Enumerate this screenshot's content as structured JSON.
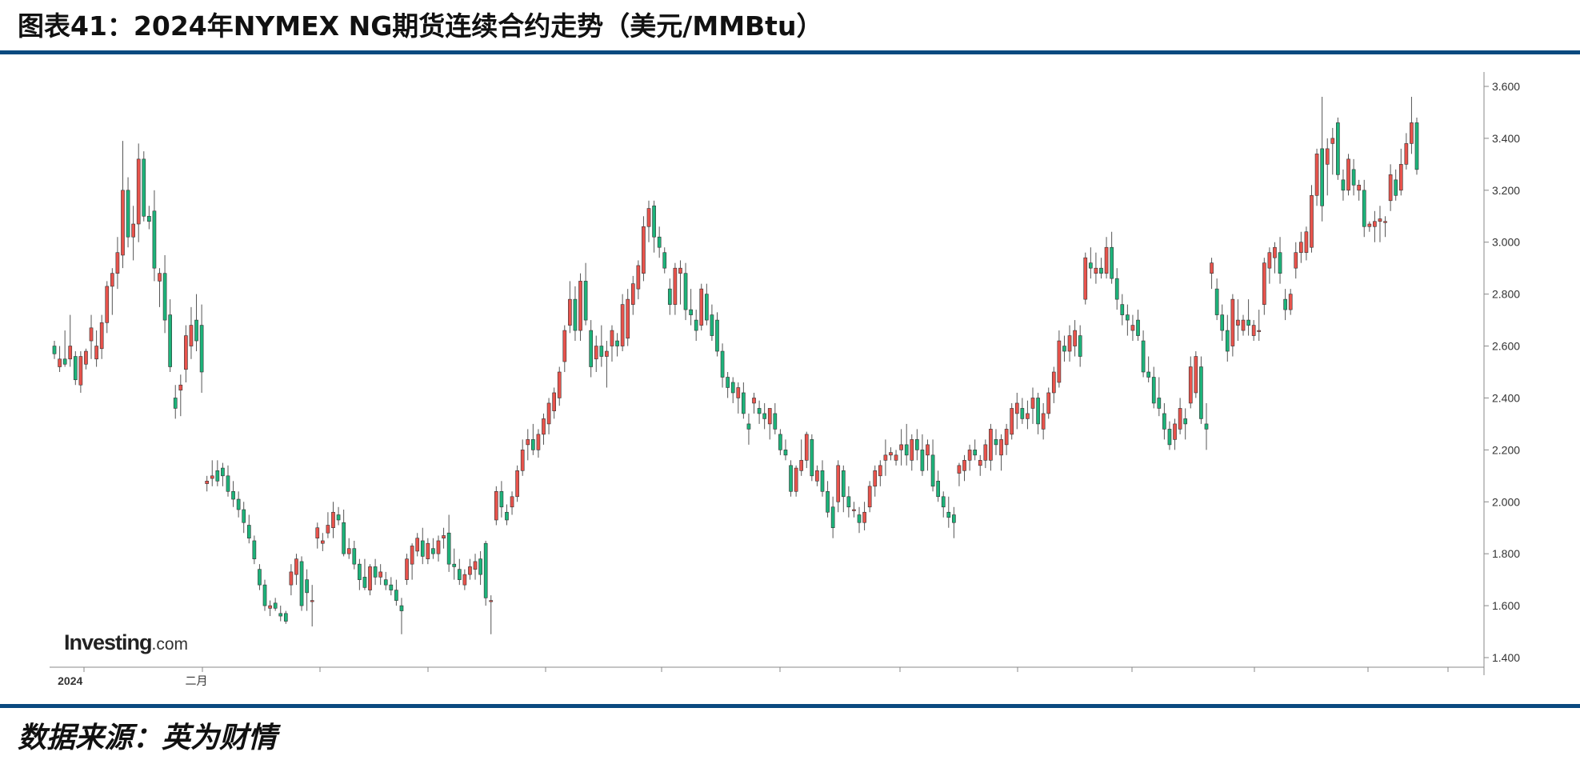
{
  "header": {
    "title": "图表41：2024年NYMEX NG期货连续合约走势（美元/MMBtu）"
  },
  "footer": {
    "source": "数据来源：英为财情"
  },
  "watermark": {
    "brand": "Investing",
    "suffix": ".com"
  },
  "colors": {
    "up": "#e8534c",
    "down": "#1db37a",
    "rule": "#0a4a7f",
    "wick": "#555555"
  },
  "chart_data": {
    "type": "candlestick",
    "title": "",
    "xlabel": "",
    "ylabel": "",
    "y_axis_position": "right",
    "ylim": [
      1.35,
      3.65
    ],
    "yticks": [
      "3.600",
      "3.400",
      "3.200",
      "3.000",
      "2.800",
      "2.600",
      "2.400",
      "2.200",
      "2.000",
      "1.800",
      "1.600",
      "1.400"
    ],
    "xtick_labels": [
      {
        "label": "2024",
        "index": 3
      },
      {
        "label": "二月",
        "index": 27
      }
    ],
    "grid": false,
    "candles": [
      [
        2.6,
        2.62,
        2.55,
        2.57
      ],
      [
        2.52,
        2.6,
        2.5,
        2.55
      ],
      [
        2.55,
        2.66,
        2.52,
        2.53
      ],
      [
        2.55,
        2.72,
        2.52,
        2.6
      ],
      [
        2.56,
        2.58,
        2.45,
        2.47
      ],
      [
        2.45,
        2.58,
        2.42,
        2.56
      ],
      [
        2.53,
        2.59,
        2.51,
        2.58
      ],
      [
        2.62,
        2.72,
        2.55,
        2.67
      ],
      [
        2.55,
        2.66,
        2.52,
        2.6
      ],
      [
        2.59,
        2.72,
        2.55,
        2.69
      ],
      [
        2.69,
        2.85,
        2.65,
        2.83
      ],
      [
        2.83,
        2.9,
        2.72,
        2.88
      ],
      [
        2.88,
        3.02,
        2.82,
        2.96
      ],
      [
        2.95,
        3.39,
        2.9,
        3.2
      ],
      [
        3.2,
        3.25,
        2.98,
        3.02
      ],
      [
        3.02,
        3.14,
        2.93,
        3.07
      ],
      [
        3.07,
        3.38,
        3.0,
        3.32
      ],
      [
        3.32,
        3.35,
        3.08,
        3.1
      ],
      [
        3.1,
        3.14,
        3.05,
        3.08
      ],
      [
        3.12,
        3.2,
        2.85,
        2.9
      ],
      [
        2.85,
        2.9,
        2.75,
        2.88
      ],
      [
        2.88,
        2.95,
        2.65,
        2.7
      ],
      [
        2.72,
        2.78,
        2.5,
        2.52
      ],
      [
        2.4,
        2.45,
        2.32,
        2.36
      ],
      [
        2.43,
        2.49,
        2.33,
        2.45
      ],
      [
        2.51,
        2.68,
        2.46,
        2.64
      ],
      [
        2.6,
        2.75,
        2.55,
        2.68
      ],
      [
        2.7,
        2.8,
        2.58,
        2.62
      ],
      [
        2.68,
        2.76,
        2.42,
        2.5
      ],
      [
        2.07,
        2.1,
        2.04,
        2.08
      ],
      [
        2.09,
        2.16,
        2.06,
        2.1
      ],
      [
        2.12,
        2.16,
        2.06,
        2.08
      ],
      [
        2.13,
        2.15,
        2.06,
        2.1
      ],
      [
        2.1,
        2.14,
        2.02,
        2.04
      ],
      [
        2.04,
        2.08,
        1.98,
        2.01
      ],
      [
        2.01,
        2.04,
        1.94,
        1.97
      ],
      [
        1.97,
        2.0,
        1.88,
        1.92
      ],
      [
        1.91,
        1.95,
        1.84,
        1.86
      ],
      [
        1.85,
        1.87,
        1.76,
        1.78
      ],
      [
        1.74,
        1.76,
        1.66,
        1.68
      ],
      [
        1.68,
        1.7,
        1.58,
        1.6
      ],
      [
        1.59,
        1.62,
        1.56,
        1.6
      ],
      [
        1.61,
        1.63,
        1.58,
        1.59
      ],
      [
        1.57,
        1.6,
        1.54,
        1.56
      ],
      [
        1.57,
        1.58,
        1.53,
        1.54
      ],
      [
        1.68,
        1.76,
        1.64,
        1.73
      ],
      [
        1.72,
        1.8,
        1.68,
        1.78
      ],
      [
        1.77,
        1.79,
        1.58,
        1.6
      ],
      [
        1.7,
        1.74,
        1.58,
        1.65
      ],
      [
        1.62,
        1.68,
        1.52,
        1.62
      ],
      [
        1.86,
        1.92,
        1.82,
        1.9
      ],
      [
        1.84,
        1.88,
        1.81,
        1.85
      ],
      [
        1.88,
        1.96,
        1.86,
        1.91
      ],
      [
        1.9,
        2.0,
        1.86,
        1.96
      ],
      [
        1.95,
        1.98,
        1.91,
        1.93
      ],
      [
        1.92,
        1.97,
        1.79,
        1.8
      ],
      [
        1.8,
        1.86,
        1.78,
        1.82
      ],
      [
        1.82,
        1.85,
        1.74,
        1.76
      ],
      [
        1.76,
        1.78,
        1.66,
        1.7
      ],
      [
        1.71,
        1.78,
        1.66,
        1.67
      ],
      [
        1.66,
        1.76,
        1.64,
        1.75
      ],
      [
        1.75,
        1.78,
        1.68,
        1.71
      ],
      [
        1.71,
        1.76,
        1.68,
        1.73
      ],
      [
        1.7,
        1.73,
        1.66,
        1.68
      ],
      [
        1.68,
        1.71,
        1.64,
        1.66
      ],
      [
        1.66,
        1.7,
        1.6,
        1.62
      ],
      [
        1.6,
        1.63,
        1.49,
        1.58
      ],
      [
        1.7,
        1.8,
        1.68,
        1.78
      ],
      [
        1.76,
        1.84,
        1.7,
        1.83
      ],
      [
        1.81,
        1.88,
        1.79,
        1.86
      ],
      [
        1.85,
        1.9,
        1.76,
        1.79
      ],
      [
        1.78,
        1.86,
        1.76,
        1.84
      ],
      [
        1.82,
        1.86,
        1.78,
        1.8
      ],
      [
        1.8,
        1.87,
        1.77,
        1.85
      ],
      [
        1.86,
        1.9,
        1.82,
        1.87
      ],
      [
        1.88,
        1.95,
        1.73,
        1.76
      ],
      [
        1.76,
        1.82,
        1.7,
        1.75
      ],
      [
        1.74,
        1.78,
        1.68,
        1.7
      ],
      [
        1.68,
        1.74,
        1.66,
        1.72
      ],
      [
        1.72,
        1.78,
        1.7,
        1.75
      ],
      [
        1.74,
        1.8,
        1.7,
        1.77
      ],
      [
        1.78,
        1.81,
        1.68,
        1.72
      ],
      [
        1.84,
        1.85,
        1.6,
        1.63
      ],
      [
        1.62,
        1.64,
        1.49,
        1.62
      ],
      [
        1.93,
        2.06,
        1.91,
        2.04
      ],
      [
        2.04,
        2.08,
        1.94,
        1.98
      ],
      [
        1.96,
        1.99,
        1.91,
        1.93
      ],
      [
        1.98,
        2.04,
        1.95,
        2.02
      ],
      [
        2.02,
        2.14,
        2.0,
        2.12
      ],
      [
        2.12,
        2.24,
        2.1,
        2.2
      ],
      [
        2.22,
        2.28,
        2.16,
        2.24
      ],
      [
        2.24,
        2.3,
        2.18,
        2.2
      ],
      [
        2.2,
        2.28,
        2.17,
        2.26
      ],
      [
        2.26,
        2.34,
        2.22,
        2.32
      ],
      [
        2.3,
        2.4,
        2.26,
        2.38
      ],
      [
        2.35,
        2.44,
        2.32,
        2.42
      ],
      [
        2.4,
        2.52,
        2.37,
        2.5
      ],
      [
        2.54,
        2.68,
        2.5,
        2.66
      ],
      [
        2.68,
        2.85,
        2.65,
        2.78
      ],
      [
        2.78,
        2.83,
        2.62,
        2.66
      ],
      [
        2.66,
        2.88,
        2.62,
        2.85
      ],
      [
        2.85,
        2.92,
        2.68,
        2.7
      ],
      [
        2.66,
        2.7,
        2.48,
        2.52
      ],
      [
        2.55,
        2.64,
        2.5,
        2.6
      ],
      [
        2.6,
        2.68,
        2.52,
        2.56
      ],
      [
        2.56,
        2.62,
        2.44,
        2.58
      ],
      [
        2.6,
        2.68,
        2.54,
        2.66
      ],
      [
        2.62,
        2.65,
        2.56,
        2.6
      ],
      [
        2.6,
        2.8,
        2.58,
        2.76
      ],
      [
        2.63,
        2.82,
        2.6,
        2.78
      ],
      [
        2.76,
        2.87,
        2.72,
        2.84
      ],
      [
        2.82,
        2.93,
        2.78,
        2.91
      ],
      [
        2.88,
        3.1,
        2.85,
        3.06
      ],
      [
        3.06,
        3.16,
        3.0,
        3.13
      ],
      [
        3.14,
        3.16,
        2.96,
        3.02
      ],
      [
        3.02,
        3.06,
        2.94,
        2.98
      ],
      [
        2.96,
        2.98,
        2.88,
        2.9
      ],
      [
        2.82,
        2.86,
        2.72,
        2.76
      ],
      [
        2.76,
        2.92,
        2.72,
        2.9
      ],
      [
        2.88,
        2.93,
        2.76,
        2.9
      ],
      [
        2.88,
        2.92,
        2.7,
        2.74
      ],
      [
        2.74,
        2.82,
        2.68,
        2.72
      ],
      [
        2.7,
        2.74,
        2.62,
        2.66
      ],
      [
        2.68,
        2.84,
        2.66,
        2.82
      ],
      [
        2.8,
        2.84,
        2.68,
        2.7
      ],
      [
        2.72,
        2.76,
        2.62,
        2.64
      ],
      [
        2.7,
        2.73,
        2.56,
        2.58
      ],
      [
        2.58,
        2.61,
        2.44,
        2.48
      ],
      [
        2.48,
        2.5,
        2.4,
        2.44
      ],
      [
        2.46,
        2.48,
        2.38,
        2.42
      ],
      [
        2.4,
        2.46,
        2.34,
        2.44
      ],
      [
        2.42,
        2.46,
        2.32,
        2.34
      ],
      [
        2.3,
        2.34,
        2.22,
        2.28
      ],
      [
        2.38,
        2.42,
        2.34,
        2.4
      ],
      [
        2.36,
        2.39,
        2.3,
        2.34
      ],
      [
        2.34,
        2.38,
        2.28,
        2.32
      ],
      [
        2.3,
        2.36,
        2.24,
        2.36
      ],
      [
        2.34,
        2.38,
        2.26,
        2.28
      ],
      [
        2.26,
        2.28,
        2.18,
        2.2
      ],
      [
        2.2,
        2.24,
        2.16,
        2.18
      ],
      [
        2.14,
        2.16,
        2.02,
        2.04
      ],
      [
        2.04,
        2.14,
        2.02,
        2.13
      ],
      [
        2.12,
        2.24,
        2.1,
        2.16
      ],
      [
        2.16,
        2.27,
        2.13,
        2.26
      ],
      [
        2.24,
        2.26,
        2.08,
        2.1
      ],
      [
        2.08,
        2.14,
        2.06,
        2.12
      ],
      [
        2.12,
        2.16,
        2.02,
        2.04
      ],
      [
        2.04,
        2.08,
        1.94,
        1.96
      ],
      [
        1.98,
        2.02,
        1.86,
        1.9
      ],
      [
        2.0,
        2.16,
        1.96,
        2.14
      ],
      [
        2.12,
        2.14,
        1.96,
        2.02
      ],
      [
        2.02,
        2.06,
        1.94,
        1.98
      ],
      [
        1.97,
        2.0,
        1.94,
        1.97
      ],
      [
        1.95,
        1.98,
        1.88,
        1.92
      ],
      [
        1.92,
        2.0,
        1.89,
        1.96
      ],
      [
        1.98,
        2.08,
        1.96,
        2.06
      ],
      [
        2.06,
        2.14,
        2.02,
        2.12
      ],
      [
        2.1,
        2.16,
        2.06,
        2.14
      ],
      [
        2.16,
        2.24,
        2.1,
        2.18
      ],
      [
        2.18,
        2.21,
        2.16,
        2.19
      ],
      [
        2.16,
        2.2,
        2.14,
        2.18
      ],
      [
        2.2,
        2.28,
        2.14,
        2.22
      ],
      [
        2.22,
        2.3,
        2.14,
        2.18
      ],
      [
        2.16,
        2.26,
        2.12,
        2.24
      ],
      [
        2.24,
        2.28,
        2.16,
        2.2
      ],
      [
        2.2,
        2.26,
        2.1,
        2.12
      ],
      [
        2.18,
        2.24,
        2.12,
        2.22
      ],
      [
        2.18,
        2.24,
        2.04,
        2.06
      ],
      [
        2.08,
        2.12,
        2.0,
        2.02
      ],
      [
        2.02,
        2.04,
        1.94,
        1.98
      ],
      [
        1.96,
        2.02,
        1.9,
        1.94
      ],
      [
        1.95,
        1.98,
        1.86,
        1.92
      ],
      [
        2.11,
        2.15,
        2.06,
        2.14
      ],
      [
        2.12,
        2.18,
        2.08,
        2.16
      ],
      [
        2.16,
        2.22,
        2.12,
        2.2
      ],
      [
        2.2,
        2.24,
        2.16,
        2.18
      ],
      [
        2.14,
        2.18,
        2.1,
        2.16
      ],
      [
        2.16,
        2.24,
        2.13,
        2.22
      ],
      [
        2.16,
        2.3,
        2.12,
        2.28
      ],
      [
        2.24,
        2.28,
        2.18,
        2.22
      ],
      [
        2.18,
        2.26,
        2.12,
        2.24
      ],
      [
        2.22,
        2.3,
        2.18,
        2.28
      ],
      [
        2.26,
        2.38,
        2.24,
        2.36
      ],
      [
        2.34,
        2.42,
        2.28,
        2.38
      ],
      [
        2.36,
        2.4,
        2.3,
        2.32
      ],
      [
        2.32,
        2.39,
        2.28,
        2.34
      ],
      [
        2.36,
        2.44,
        2.3,
        2.4
      ],
      [
        2.4,
        2.42,
        2.26,
        2.3
      ],
      [
        2.28,
        2.38,
        2.24,
        2.34
      ],
      [
        2.34,
        2.44,
        2.32,
        2.42
      ],
      [
        2.42,
        2.52,
        2.38,
        2.5
      ],
      [
        2.46,
        2.66,
        2.44,
        2.62
      ],
      [
        2.6,
        2.64,
        2.54,
        2.58
      ],
      [
        2.58,
        2.68,
        2.54,
        2.64
      ],
      [
        2.6,
        2.7,
        2.56,
        2.66
      ],
      [
        2.64,
        2.68,
        2.52,
        2.56
      ],
      [
        2.78,
        2.96,
        2.76,
        2.94
      ],
      [
        2.92,
        2.98,
        2.86,
        2.9
      ],
      [
        2.88,
        2.96,
        2.84,
        2.9
      ],
      [
        2.9,
        2.94,
        2.86,
        2.88
      ],
      [
        2.88,
        3.02,
        2.86,
        2.98
      ],
      [
        2.98,
        3.04,
        2.84,
        2.86
      ],
      [
        2.86,
        2.9,
        2.74,
        2.78
      ],
      [
        2.76,
        2.8,
        2.68,
        2.72
      ],
      [
        2.72,
        2.76,
        2.64,
        2.7
      ],
      [
        2.66,
        2.72,
        2.62,
        2.68
      ],
      [
        2.7,
        2.74,
        2.62,
        2.64
      ],
      [
        2.62,
        2.66,
        2.48,
        2.5
      ],
      [
        2.5,
        2.56,
        2.46,
        2.48
      ],
      [
        2.48,
        2.52,
        2.36,
        2.38
      ],
      [
        2.4,
        2.48,
        2.33,
        2.36
      ],
      [
        2.34,
        2.38,
        2.24,
        2.28
      ],
      [
        2.28,
        2.31,
        2.2,
        2.22
      ],
      [
        2.24,
        2.32,
        2.2,
        2.3
      ],
      [
        2.28,
        2.4,
        2.26,
        2.36
      ],
      [
        2.32,
        2.36,
        2.24,
        2.3
      ],
      [
        2.38,
        2.56,
        2.36,
        2.52
      ],
      [
        2.42,
        2.58,
        2.4,
        2.56
      ],
      [
        2.52,
        2.56,
        2.3,
        2.32
      ],
      [
        2.3,
        2.38,
        2.2,
        2.28
      ],
      [
        2.88,
        2.94,
        2.82,
        2.92
      ],
      [
        2.82,
        2.86,
        2.7,
        2.72
      ],
      [
        2.72,
        2.76,
        2.62,
        2.66
      ],
      [
        2.66,
        2.72,
        2.54,
        2.58
      ],
      [
        2.6,
        2.8,
        2.56,
        2.78
      ],
      [
        2.68,
        2.78,
        2.62,
        2.7
      ],
      [
        2.66,
        2.72,
        2.64,
        2.7
      ],
      [
        2.7,
        2.78,
        2.64,
        2.68
      ],
      [
        2.64,
        2.7,
        2.62,
        2.68
      ],
      [
        2.66,
        2.74,
        2.62,
        2.66
      ],
      [
        2.76,
        2.94,
        2.72,
        2.92
      ],
      [
        2.9,
        2.98,
        2.84,
        2.96
      ],
      [
        2.94,
        3.0,
        2.88,
        2.98
      ],
      [
        2.96,
        3.02,
        2.84,
        2.88
      ],
      [
        2.78,
        2.82,
        2.7,
        2.74
      ],
      [
        2.74,
        2.82,
        2.72,
        2.8
      ],
      [
        2.9,
        3.0,
        2.86,
        2.96
      ],
      [
        2.96,
        3.04,
        2.92,
        3.0
      ],
      [
        2.96,
        3.06,
        2.93,
        3.04
      ],
      [
        2.98,
        3.22,
        2.96,
        3.18
      ],
      [
        3.18,
        3.36,
        3.14,
        3.34
      ],
      [
        3.36,
        3.56,
        3.08,
        3.14
      ],
      [
        3.3,
        3.4,
        3.18,
        3.36
      ],
      [
        3.38,
        3.44,
        3.26,
        3.4
      ],
      [
        3.46,
        3.48,
        3.24,
        3.26
      ],
      [
        3.24,
        3.28,
        3.16,
        3.2
      ],
      [
        3.2,
        3.34,
        3.18,
        3.32
      ],
      [
        3.28,
        3.32,
        3.18,
        3.22
      ],
      [
        3.2,
        3.24,
        3.16,
        3.22
      ],
      [
        3.2,
        3.24,
        3.02,
        3.06
      ],
      [
        3.06,
        3.08,
        3.04,
        3.07
      ],
      [
        3.06,
        3.12,
        3.0,
        3.08
      ],
      [
        3.08,
        3.14,
        3.0,
        3.09
      ],
      [
        3.08,
        3.1,
        3.02,
        3.08
      ],
      [
        3.16,
        3.3,
        3.12,
        3.26
      ],
      [
        3.24,
        3.28,
        3.16,
        3.18
      ],
      [
        3.2,
        3.36,
        3.18,
        3.3
      ],
      [
        3.3,
        3.42,
        3.28,
        3.38
      ],
      [
        3.38,
        3.56,
        3.34,
        3.46
      ],
      [
        3.46,
        3.48,
        3.26,
        3.28
      ]
    ]
  }
}
